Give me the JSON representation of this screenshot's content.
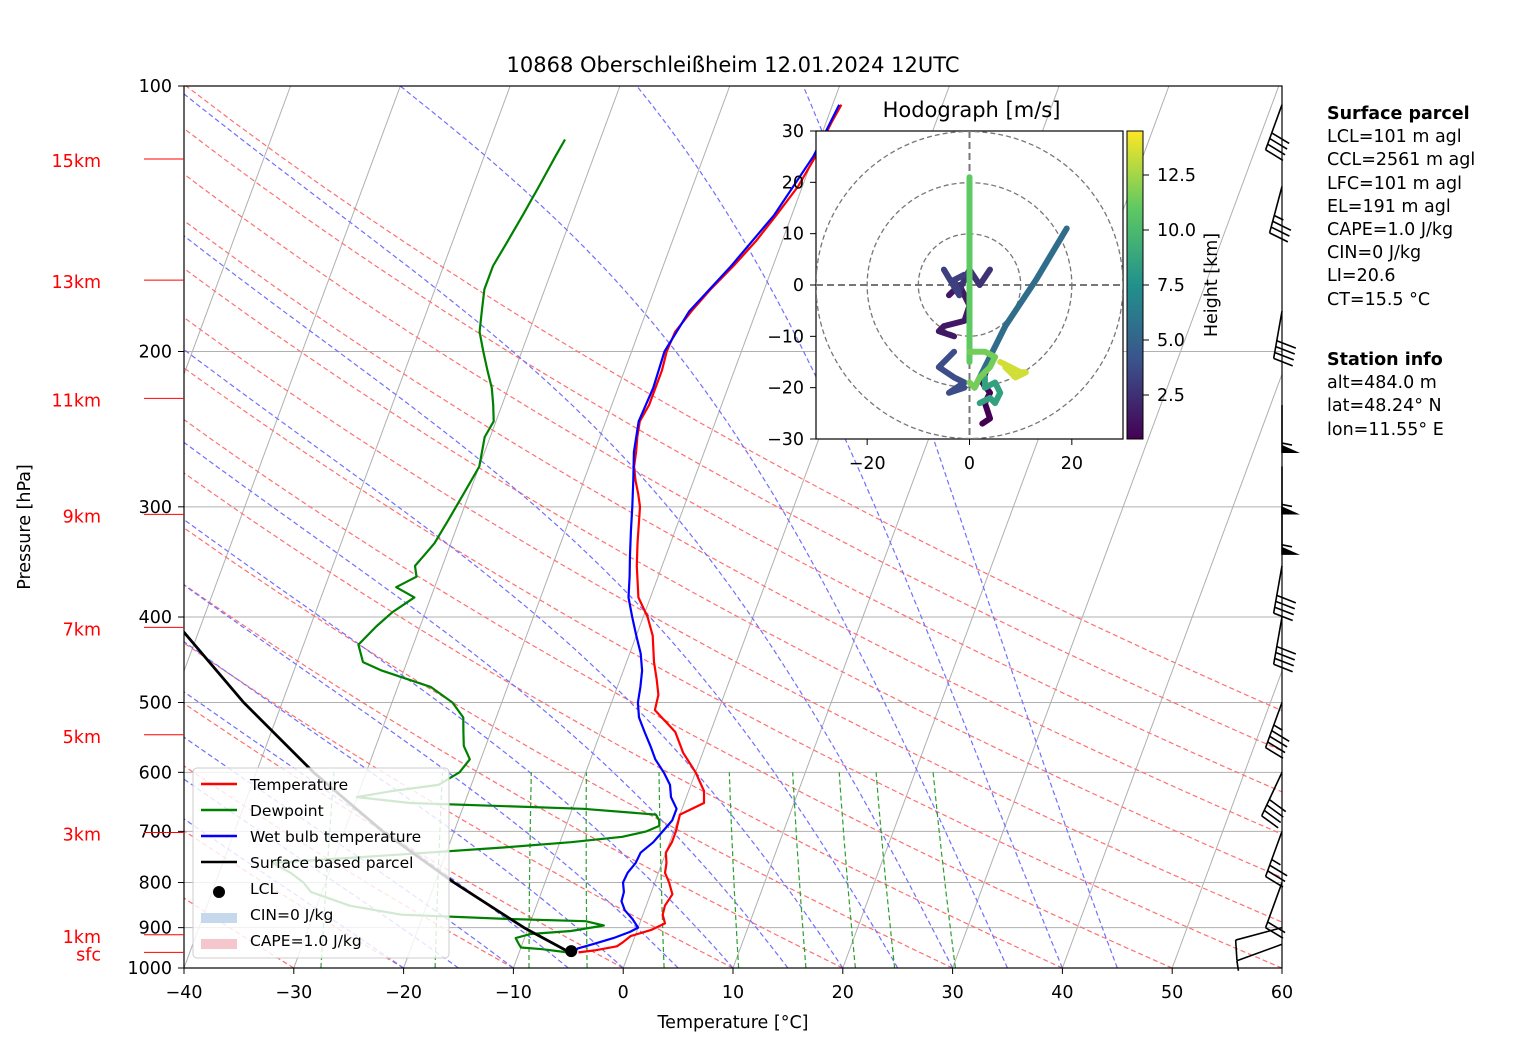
{
  "title": "10868 Oberschleißheim 12.01.2024 12UTC",
  "chart_data": {
    "type": "skew-t log-p sounding",
    "title": "10868 Oberschleißheim 12.01.2024 12UTC",
    "xlabel": "Temperature [°C]",
    "ylabel": "Pressure [hPa]",
    "xlim": [
      -40,
      60
    ],
    "ylim": [
      1000,
      100
    ],
    "x_ticks": [
      "−40",
      "−30",
      "−20",
      "−10",
      "0",
      "10",
      "20",
      "30",
      "40",
      "50",
      "60"
    ],
    "y_ticks": [
      {
        "p": 100,
        "label": "100"
      },
      {
        "p": 200,
        "label": "200"
      },
      {
        "p": 300,
        "label": "300"
      },
      {
        "p": 400,
        "label": "400"
      },
      {
        "p": 500,
        "label": "500"
      },
      {
        "p": 600,
        "label": "600"
      },
      {
        "p": 700,
        "label": "700"
      },
      {
        "p": 800,
        "label": "800"
      },
      {
        "p": 900,
        "label": "900"
      },
      {
        "p": 1000,
        "label": "1000"
      }
    ],
    "height_labels": [
      {
        "p": 960,
        "label": "sfc"
      },
      {
        "p": 917,
        "label": "1km"
      },
      {
        "p": 702,
        "label": "3km"
      },
      {
        "p": 544,
        "label": "5km"
      },
      {
        "p": 411,
        "label": "7km"
      },
      {
        "p": 306,
        "label": "9km"
      },
      {
        "p": 226,
        "label": "11km"
      },
      {
        "p": 166,
        "label": "13km"
      },
      {
        "p": 121,
        "label": "15km"
      }
    ],
    "series": [
      {
        "name": "Temperature",
        "color": "#ff0000",
        "points": [
          [
            960,
            -4.6
          ],
          [
            955,
            -3.2
          ],
          [
            945,
            -1.3
          ],
          [
            935,
            -0.9
          ],
          [
            920,
            -0.4
          ],
          [
            905,
            1.3
          ],
          [
            890,
            2.3
          ],
          [
            870,
            1.8
          ],
          [
            850,
            1.7
          ],
          [
            825,
            2.0
          ],
          [
            800,
            1.3
          ],
          [
            780,
            0.6
          ],
          [
            760,
            0.4
          ],
          [
            740,
            0.0
          ],
          [
            720,
            0.2
          ],
          [
            700,
            0.2
          ],
          [
            670,
            0.0
          ],
          [
            650,
            1.8
          ],
          [
            630,
            1.4
          ],
          [
            600,
            0.0
          ],
          [
            570,
            -1.8
          ],
          [
            540,
            -3.2
          ],
          [
            510,
            -5.8
          ],
          [
            490,
            -6.0
          ],
          [
            470,
            -6.7
          ],
          [
            450,
            -7.5
          ],
          [
            420,
            -8.5
          ],
          [
            400,
            -9.6
          ],
          [
            380,
            -11.1
          ],
          [
            350,
            -12.3
          ],
          [
            330,
            -13.0
          ],
          [
            300,
            -14.0
          ],
          [
            290,
            -14.6
          ],
          [
            280,
            -15.3
          ],
          [
            270,
            -15.9
          ],
          [
            260,
            -16.2
          ],
          [
            250,
            -16.6
          ],
          [
            240,
            -16.9
          ],
          [
            230,
            -16.6
          ],
          [
            220,
            -16.6
          ],
          [
            210,
            -16.6
          ],
          [
            200,
            -16.8
          ],
          [
            190,
            -16.7
          ],
          [
            180,
            -15.9
          ],
          [
            170,
            -14.9
          ],
          [
            160,
            -13.6
          ],
          [
            150,
            -12.4
          ],
          [
            140,
            -11.4
          ],
          [
            130,
            -10.4
          ],
          [
            120,
            -9.8
          ],
          [
            115,
            -9.7
          ],
          [
            110,
            -9.5
          ],
          [
            105,
            -9.2
          ]
        ]
      },
      {
        "name": "Dewpoint",
        "color": "#008000",
        "points": [
          [
            960,
            -5.6
          ],
          [
            952,
            -8.0
          ],
          [
            948,
            -10.0
          ],
          [
            940,
            -10.3
          ],
          [
            925,
            -10.8
          ],
          [
            915,
            -9.6
          ],
          [
            908,
            -6.0
          ],
          [
            895,
            -3.2
          ],
          [
            885,
            -5.0
          ],
          [
            880,
            -12.0
          ],
          [
            870,
            -22.0
          ],
          [
            850,
            -27.0
          ],
          [
            820,
            -31.0
          ],
          [
            800,
            -32.0
          ],
          [
            780,
            -33.5
          ],
          [
            760,
            -35.5
          ],
          [
            745,
            -25.0
          ],
          [
            730,
            -15.0
          ],
          [
            720,
            -9.0
          ],
          [
            710,
            -4.5
          ],
          [
            700,
            -2.5
          ],
          [
            690,
            -1.5
          ],
          [
            680,
            -1.7
          ],
          [
            670,
            -2.2
          ],
          [
            660,
            -9.0
          ],
          [
            650,
            -25.0
          ],
          [
            640,
            -30.0
          ],
          [
            630,
            -27.0
          ],
          [
            620,
            -23.0
          ],
          [
            600,
            -21.5
          ],
          [
            580,
            -21.0
          ],
          [
            560,
            -22.0
          ],
          [
            540,
            -22.5
          ],
          [
            520,
            -23.0
          ],
          [
            500,
            -24.5
          ],
          [
            480,
            -27.0
          ],
          [
            460,
            -32.0
          ],
          [
            450,
            -34.0
          ],
          [
            430,
            -35.0
          ],
          [
            410,
            -34.0
          ],
          [
            395,
            -33.0
          ],
          [
            380,
            -31.5
          ],
          [
            370,
            -33.5
          ],
          [
            360,
            -32.0
          ],
          [
            350,
            -32.5
          ],
          [
            340,
            -32.0
          ],
          [
            330,
            -31.5
          ],
          [
            310,
            -31.0
          ],
          [
            290,
            -30.5
          ],
          [
            270,
            -30.0
          ],
          [
            250,
            -30.5
          ],
          [
            240,
            -30.2
          ],
          [
            230,
            -30.8
          ],
          [
            220,
            -31.5
          ],
          [
            210,
            -32.5
          ],
          [
            200,
            -33.5
          ],
          [
            190,
            -34.5
          ],
          [
            180,
            -35.0
          ],
          [
            170,
            -35.5
          ],
          [
            160,
            -35.5
          ],
          [
            150,
            -35.0
          ],
          [
            140,
            -34.5
          ],
          [
            130,
            -34.0
          ],
          [
            120,
            -33.5
          ],
          [
            115,
            -33.2
          ]
        ]
      },
      {
        "name": "Wet bulb temperature",
        "color": "#0000ff",
        "points": [
          [
            960,
            -5.0
          ],
          [
            950,
            -4.8
          ],
          [
            940,
            -3.6
          ],
          [
            925,
            -1.9
          ],
          [
            910,
            -0.6
          ],
          [
            900,
            0.0
          ],
          [
            880,
            -0.8
          ],
          [
            860,
            -1.8
          ],
          [
            840,
            -2.4
          ],
          [
            820,
            -2.5
          ],
          [
            800,
            -2.9
          ],
          [
            780,
            -2.8
          ],
          [
            760,
            -2.4
          ],
          [
            740,
            -2.3
          ],
          [
            720,
            -1.5
          ],
          [
            700,
            -1.0
          ],
          [
            680,
            -0.5
          ],
          [
            660,
            -0.5
          ],
          [
            640,
            -1.4
          ],
          [
            620,
            -1.9
          ],
          [
            600,
            -2.9
          ],
          [
            580,
            -4.1
          ],
          [
            560,
            -5.0
          ],
          [
            540,
            -6.0
          ],
          [
            520,
            -7.0
          ],
          [
            500,
            -7.6
          ],
          [
            480,
            -7.9
          ],
          [
            460,
            -8.3
          ],
          [
            440,
            -9.0
          ],
          [
            420,
            -10.0
          ],
          [
            400,
            -11.0
          ],
          [
            380,
            -12.0
          ],
          [
            360,
            -12.6
          ],
          [
            340,
            -13.3
          ],
          [
            320,
            -14.0
          ],
          [
            300,
            -14.7
          ],
          [
            280,
            -15.5
          ],
          [
            260,
            -16.4
          ],
          [
            240,
            -17.0
          ],
          [
            220,
            -16.8
          ],
          [
            200,
            -17.0
          ],
          [
            180,
            -16.1
          ],
          [
            160,
            -13.8
          ],
          [
            140,
            -11.6
          ],
          [
            120,
            -10.0
          ],
          [
            105,
            -9.4
          ]
        ]
      },
      {
        "name": "Surface based parcel",
        "color": "#000000",
        "points": [
          [
            960,
            -5.4
          ],
          [
            900,
            -10.4
          ],
          [
            800,
            -18.3
          ],
          [
            700,
            -26.5
          ],
          [
            600,
            -34.8
          ],
          [
            500,
            -43.5
          ],
          [
            400,
            -53.0
          ],
          [
            300,
            -63.0
          ]
        ]
      }
    ],
    "lcl": {
      "name": "LCL",
      "p": 957,
      "t": -5.3
    },
    "legend": {
      "position": "lower-left",
      "entries": [
        "Temperature",
        "Dewpoint",
        "Wet bulb temperature",
        "Surface based parcel",
        "LCL",
        "CIN=0 J/kg",
        "CAPE=1.0 J/kg"
      ]
    },
    "zero_isotherm_color": "#00bfbf",
    "wind_barbs": [
      {
        "p": 940,
        "dir": 250,
        "speed_kt": 7
      },
      {
        "p": 900,
        "dir": 255,
        "speed_kt": 12
      },
      {
        "p": 800,
        "dir": 200,
        "speed_kt": 22
      },
      {
        "p": 700,
        "dir": 200,
        "speed_kt": 38
      },
      {
        "p": 600,
        "dir": 205,
        "speed_kt": 40
      },
      {
        "p": 500,
        "dir": 200,
        "speed_kt": 45
      },
      {
        "p": 400,
        "dir": 190,
        "speed_kt": 40
      },
      {
        "p": 350,
        "dir": 190,
        "speed_kt": 40
      },
      {
        "p": 300,
        "dir": 180,
        "speed_kt": 55
      },
      {
        "p": 270,
        "dir": 180,
        "speed_kt": 55
      },
      {
        "p": 230,
        "dir": 180,
        "speed_kt": 55
      },
      {
        "p": 180,
        "dir": 190,
        "speed_kt": 40
      },
      {
        "p": 130,
        "dir": 195,
        "speed_kt": 35
      },
      {
        "p": 105,
        "dir": 200,
        "speed_kt": 40
      }
    ],
    "hodograph": {
      "title": "Hodograph [m/s]",
      "xlim": [
        -30,
        30
      ],
      "ylim": [
        -30,
        30
      ],
      "x_ticks": [
        "−20",
        "0",
        "20"
      ],
      "y_ticks": [
        "30",
        "20",
        "10",
        "0",
        "−10",
        "−20",
        "−30"
      ],
      "colorbar_label": "Height [km]",
      "colorbar_ticks": [
        "2.5",
        "5.0",
        "7.5",
        "10.0",
        "12.5"
      ],
      "colorbar_range": [
        0.5,
        14.5
      ],
      "rings": [
        10,
        20,
        30
      ],
      "segments": [
        {
          "h": 0.5,
          "pts": [
            [
              2.5,
              -27
            ],
            [
              4,
              -26
            ],
            [
              3,
              -23
            ],
            [
              4,
              -21
            ],
            [
              2.5,
              -19
            ],
            [
              3.5,
              -16
            ]
          ]
        },
        {
          "h": 1.5,
          "pts": [
            [
              -4,
              -2
            ],
            [
              -2,
              0
            ],
            [
              0,
              -4
            ],
            [
              -1,
              -7
            ],
            [
              -5,
              -8
            ],
            [
              -6,
              -9
            ],
            [
              -3,
              -10
            ]
          ]
        },
        {
          "h": 2.6,
          "pts": [
            [
              -2,
              -1
            ],
            [
              0,
              3
            ],
            [
              2,
              0
            ],
            [
              4,
              3
            ]
          ]
        },
        {
          "h": 3.2,
          "pts": [
            [
              -5,
              3
            ],
            [
              -2,
              -2
            ],
            [
              -3,
              1
            ],
            [
              -1,
              2
            ]
          ]
        },
        {
          "h": 3.8,
          "pts": [
            [
              -3,
              -13
            ],
            [
              -5,
              -15
            ],
            [
              -6,
              -16
            ],
            [
              -3,
              -18
            ],
            [
              -1,
              -19
            ],
            [
              -4,
              -21
            ],
            [
              -1,
              -20
            ]
          ]
        },
        {
          "h": 5.5,
          "pts": [
            [
              1,
              -20
            ],
            [
              7,
              -8
            ],
            [
              13,
              1
            ],
            [
              19,
              11
            ]
          ]
        },
        {
          "h": 8.5,
          "pts": [
            [
              2,
              -23
            ],
            [
              4,
              -22
            ],
            [
              5,
              -23
            ],
            [
              6,
              -21
            ],
            [
              5,
              -19
            ],
            [
              3,
              -20
            ],
            [
              3,
              -18
            ]
          ]
        },
        {
          "h": 11.0,
          "pts": [
            [
              0,
              -15
            ],
            [
              0,
              -10
            ],
            [
              0,
              0
            ],
            [
              0,
              10
            ],
            [
              0,
              21
            ]
          ]
        },
        {
          "h": 11.5,
          "pts": [
            [
              0,
              -13
            ],
            [
              3,
              -13
            ],
            [
              5,
              -14
            ],
            [
              4,
              -16
            ],
            [
              2,
              -18
            ],
            [
              1,
              -20
            ],
            [
              0,
              -19
            ]
          ]
        },
        {
          "h": 13.5,
          "pts": [
            [
              6,
              -15
            ],
            [
              8,
              -16
            ],
            [
              10,
              -17
            ],
            [
              11,
              -17
            ],
            [
              9,
              -18
            ],
            [
              7,
              -16
            ]
          ]
        }
      ]
    }
  },
  "info": {
    "surface_heading": "Surface parcel",
    "surface_lines": [
      "LCL=101 m agl",
      "CCL=2561 m agl",
      "LFC=101 m agl",
      "EL=191 m agl",
      "CAPE=1.0 J/kg",
      "CIN=0 J/kg",
      "LI=20.6",
      "CT=15.5 °C"
    ],
    "station_heading": "Station info",
    "station_lines": [
      "alt=484.0 m",
      "lat=48.24° N",
      "lon=11.55° E"
    ]
  },
  "colors": {
    "temperature": "#ff0000",
    "dewpoint": "#008000",
    "wetbulb": "#0000ff",
    "parcel": "#000000",
    "height_labels": "#ff0000",
    "dry_adiabats": "#ff7070",
    "moist_adiabats": "#7070ff",
    "mixing_ratio": "#2e9e2e",
    "isotherms": "#b0b0b0",
    "cin": "#c6d9ec",
    "cape": "#f5c6cb"
  }
}
